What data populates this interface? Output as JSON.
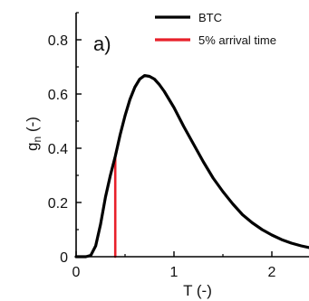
{
  "chart_data": {
    "type": "line",
    "panel_label": "a)",
    "xlabel": "T (-)",
    "ylabel_main": "g",
    "ylabel_sub": "n",
    "ylabel_unit": " (-)",
    "xlim": [
      0,
      2.5
    ],
    "ylim": [
      0,
      0.9
    ],
    "x_ticks": [
      0,
      1,
      2
    ],
    "x_tick_labels": [
      "0",
      "1",
      "2"
    ],
    "y_ticks": [
      0,
      0.2,
      0.4,
      0.6,
      0.8
    ],
    "y_tick_labels": [
      "0",
      "0.2",
      "0.4",
      "0.6",
      "0.8"
    ],
    "legend_position": "top-right",
    "series": [
      {
        "name": "BTC",
        "color": "#000000",
        "x": [
          0.0,
          0.1,
          0.15,
          0.2,
          0.25,
          0.3,
          0.35,
          0.4,
          0.45,
          0.5,
          0.55,
          0.6,
          0.65,
          0.7,
          0.75,
          0.8,
          0.85,
          0.9,
          1.0,
          1.1,
          1.2,
          1.3,
          1.4,
          1.5,
          1.6,
          1.7,
          1.8,
          1.9,
          2.0,
          2.1,
          2.2,
          2.3,
          2.4,
          2.5
        ],
        "y": [
          0.0,
          0.0,
          0.005,
          0.04,
          0.12,
          0.22,
          0.3,
          0.37,
          0.45,
          0.52,
          0.58,
          0.625,
          0.655,
          0.668,
          0.665,
          0.655,
          0.635,
          0.61,
          0.55,
          0.48,
          0.415,
          0.35,
          0.29,
          0.24,
          0.195,
          0.155,
          0.125,
          0.1,
          0.08,
          0.063,
          0.05,
          0.04,
          0.032,
          0.025
        ]
      },
      {
        "name": "5% arrival time",
        "color": "#e8202a",
        "x": [
          0.4,
          0.4
        ],
        "y": [
          0.0,
          0.365
        ]
      }
    ]
  }
}
